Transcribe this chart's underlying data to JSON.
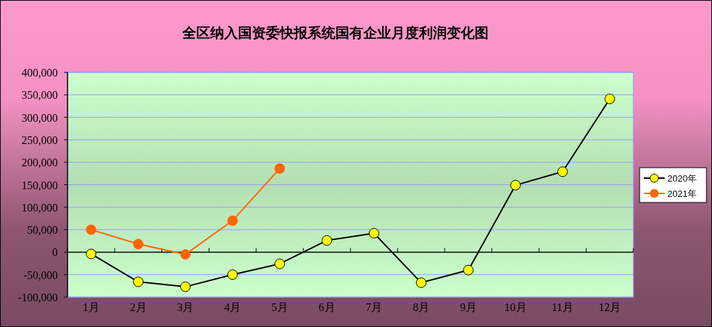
{
  "chart_data": {
    "type": "line",
    "title": "全区纳入国资委快报系统国有企业月度利润变化图",
    "categories": [
      "1月",
      "2月",
      "3月",
      "4月",
      "5月",
      "6月",
      "7月",
      "8月",
      "9月",
      "10月",
      "11月",
      "12月"
    ],
    "series": [
      {
        "name": "2020年",
        "color": "#ffff00",
        "values": [
          -4000,
          -66000,
          -77000,
          -50000,
          -26000,
          26000,
          42000,
          -68000,
          -40000,
          149000,
          179000,
          341000
        ]
      },
      {
        "name": "2021年",
        "color": "#ff6600",
        "values": [
          50000,
          18000,
          -5000,
          70000,
          186000,
          null,
          null,
          null,
          null,
          null,
          null,
          null
        ]
      }
    ],
    "ylim": [
      -100000,
      400000
    ],
    "yticks": [
      {
        "value": -100000,
        "label": "-100,000"
      },
      {
        "value": -50000,
        "label": "-50,000"
      },
      {
        "value": 0,
        "label": "0"
      },
      {
        "value": 50000,
        "label": "50,000"
      },
      {
        "value": 100000,
        "label": "100,000"
      },
      {
        "value": 150000,
        "label": "150,000"
      },
      {
        "value": 200000,
        "label": "200,000"
      },
      {
        "value": 250000,
        "label": "250,000"
      },
      {
        "value": 300000,
        "label": "300,000"
      },
      {
        "value": 350000,
        "label": "350,000"
      },
      {
        "value": 400000,
        "label": "400,000"
      }
    ],
    "grid": "y",
    "legend": "right",
    "marker": "circle",
    "line_style": "solid"
  }
}
